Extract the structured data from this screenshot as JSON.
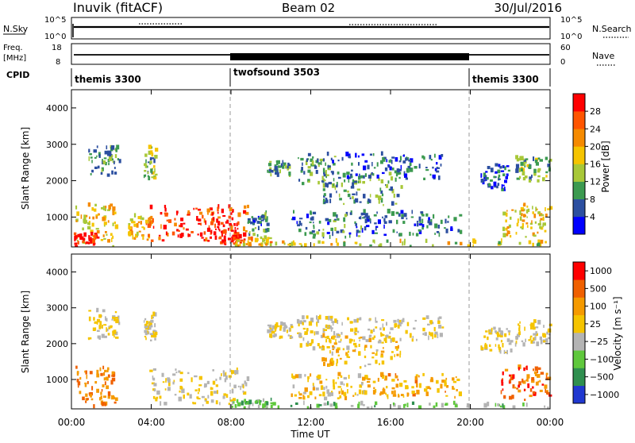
{
  "header": {
    "station": "Inuvik (fitACF)",
    "beam": "Beam 02",
    "date": "30/Jul/2016"
  },
  "noise_panel": {
    "left_label": "N.Sky",
    "right_label": "N.Search",
    "ticks_left": [
      "10^5",
      "10^0"
    ],
    "ticks_right": [
      "10^5",
      "10^0"
    ]
  },
  "freq_panel": {
    "left_label_1": "Freq.",
    "left_label_2": "[MHz]",
    "ticks_left": [
      "18",
      "8"
    ],
    "ticks_right": [
      "60",
      "0"
    ],
    "right_label": "Nave"
  },
  "cpid": {
    "label": "CPID",
    "segments": [
      {
        "name": "themis 3300",
        "start_h": 0,
        "end_h": 8
      },
      {
        "name": "twofsound 3503",
        "start_h": 8,
        "end_h": 20
      },
      {
        "name": "themis 3300",
        "start_h": 20,
        "end_h": 24
      }
    ]
  },
  "x_axis": {
    "label": "Time UT",
    "ticks": [
      "00:00",
      "04:00",
      "08:00",
      "12:00",
      "16:00",
      "20:00",
      "00:00"
    ]
  },
  "y_axis": {
    "label": "Slant Range [km]",
    "ticks": [
      "1000",
      "2000",
      "3000",
      "4000"
    ]
  },
  "power_colorbar": {
    "label": "Power [dB]",
    "ticks": [
      "4",
      "8",
      "12",
      "16",
      "20",
      "24",
      "28"
    ],
    "colors": [
      "#0000ff",
      "#2c4fa0",
      "#3c9a50",
      "#a8c838",
      "#f5c400",
      "#f58a00",
      "#ff5500",
      "#ff0000"
    ]
  },
  "velocity_colorbar": {
    "label": "Velocity [m s⁻¹]",
    "ticks": [
      "1000",
      "500",
      "100",
      "25",
      "−25",
      "−100",
      "−500",
      "−1000"
    ],
    "colors": [
      "#2038d0",
      "#2f8f4f",
      "#5fc83c",
      "#b4b4b4",
      "#f5c400",
      "#f59a00",
      "#f06000",
      "#ff0000"
    ]
  },
  "chart_data": [
    {
      "type": "heatmap",
      "title": "Power",
      "xlabel": "Time UT",
      "ylabel": "Slant Range [km]",
      "xlim": [
        0,
        24
      ],
      "ylim": [
        180,
        4500
      ],
      "colorbar_label": "Power [dB]",
      "colorbar_range": [
        3,
        30
      ],
      "regions": [
        {
          "t0": 0.2,
          "t1": 2.2,
          "r0": 180,
          "r1": 1300,
          "level": 0.55
        },
        {
          "t0": 0.1,
          "t1": 1.3,
          "r0": 180,
          "r1": 500,
          "level": 0.9
        },
        {
          "t0": 0.8,
          "t1": 2.4,
          "r0": 2100,
          "r1": 2900,
          "level": 0.3
        },
        {
          "t0": 3.6,
          "t1": 4.2,
          "r0": 2000,
          "r1": 2900,
          "level": 0.4
        },
        {
          "t0": 2.8,
          "t1": 4.0,
          "r0": 350,
          "r1": 1000,
          "level": 0.6
        },
        {
          "t0": 3.9,
          "t1": 8.8,
          "r0": 250,
          "r1": 1250,
          "level": 0.85
        },
        {
          "t0": 6.8,
          "t1": 8.6,
          "r0": 200,
          "r1": 850,
          "level": 0.95
        },
        {
          "t0": 8.0,
          "t1": 10.0,
          "r0": 180,
          "r1": 400,
          "level": 0.6
        },
        {
          "t0": 8.8,
          "t1": 9.8,
          "r0": 450,
          "r1": 1100,
          "level": 0.25
        },
        {
          "t0": 9.8,
          "t1": 11.0,
          "r0": 2100,
          "r1": 2500,
          "level": 0.3
        },
        {
          "t0": 11.3,
          "t1": 13.2,
          "r0": 1800,
          "r1": 2700,
          "level": 0.3
        },
        {
          "t0": 12.5,
          "t1": 16.5,
          "r0": 1300,
          "r1": 2200,
          "level": 0.3
        },
        {
          "t0": 13.0,
          "t1": 18.6,
          "r0": 2000,
          "r1": 2700,
          "level": 0.2
        },
        {
          "t0": 11.0,
          "t1": 14.8,
          "r0": 400,
          "r1": 1100,
          "level": 0.25
        },
        {
          "t0": 14.5,
          "t1": 19.5,
          "r0": 450,
          "r1": 1100,
          "level": 0.2
        },
        {
          "t0": 20.5,
          "t1": 22.0,
          "r0": 1700,
          "r1": 2400,
          "level": 0.15
        },
        {
          "t0": 21.5,
          "t1": 24.0,
          "r0": 400,
          "r1": 1300,
          "level": 0.55
        },
        {
          "t0": 22.2,
          "t1": 24.0,
          "r0": 1900,
          "r1": 2600,
          "level": 0.35
        },
        {
          "t0": 9.5,
          "t1": 24.0,
          "r0": 180,
          "r1": 300,
          "level": 0.5
        }
      ]
    },
    {
      "type": "heatmap",
      "title": "Velocity",
      "xlabel": "Time UT",
      "ylabel": "Slant Range [km]",
      "xlim": [
        0,
        24
      ],
      "ylim": [
        180,
        4500
      ],
      "colorbar_label": "Velocity [m s⁻¹]",
      "colorbar_range": [
        -1000,
        1000
      ],
      "regions": [
        {
          "t0": 0.2,
          "t1": 2.2,
          "r0": 180,
          "r1": 1300,
          "level": 0.75
        },
        {
          "t0": 0.8,
          "t1": 2.4,
          "r0": 2100,
          "r1": 2900,
          "level": 0.5
        },
        {
          "t0": 3.6,
          "t1": 4.2,
          "r0": 2000,
          "r1": 2900,
          "level": 0.5
        },
        {
          "t0": 3.9,
          "t1": 8.8,
          "r0": 250,
          "r1": 1250,
          "level": 0.5
        },
        {
          "t0": 8.0,
          "t1": 10.0,
          "r0": 180,
          "r1": 400,
          "level": 0.35
        },
        {
          "t0": 9.8,
          "t1": 11.0,
          "r0": 2100,
          "r1": 2500,
          "level": 0.5
        },
        {
          "t0": 11.3,
          "t1": 13.2,
          "r0": 1800,
          "r1": 2700,
          "level": 0.5
        },
        {
          "t0": 12.5,
          "t1": 16.5,
          "r0": 1300,
          "r1": 2200,
          "level": 0.6
        },
        {
          "t0": 13.0,
          "t1": 18.6,
          "r0": 2000,
          "r1": 2700,
          "level": 0.5
        },
        {
          "t0": 11.0,
          "t1": 14.8,
          "r0": 400,
          "r1": 1100,
          "level": 0.55
        },
        {
          "t0": 14.5,
          "t1": 19.5,
          "r0": 450,
          "r1": 1100,
          "level": 0.65
        },
        {
          "t0": 20.5,
          "t1": 22.0,
          "r0": 1700,
          "r1": 2400,
          "level": 0.5
        },
        {
          "t0": 21.5,
          "t1": 24.0,
          "r0": 400,
          "r1": 1300,
          "level": 0.8
        },
        {
          "t0": 22.2,
          "t1": 24.0,
          "r0": 1900,
          "r1": 2600,
          "level": 0.5
        },
        {
          "t0": 9.5,
          "t1": 24.0,
          "r0": 180,
          "r1": 300,
          "level": 0.35
        }
      ]
    }
  ]
}
